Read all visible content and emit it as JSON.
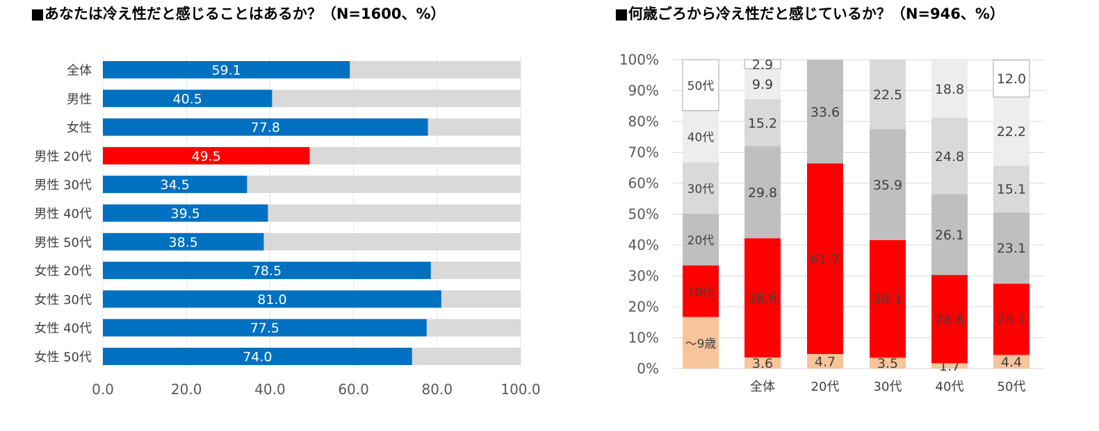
{
  "titles": {
    "left": "■あなたは冷え性だと感じることはあるか？（N=1600、%）",
    "right": "■何歳ごろから冷え性だと感じているか？（N=946、%）"
  },
  "colors": {
    "bar_blue": "#0070c0",
    "bar_red": "#ff0000",
    "track_gray": "#d9d9d9",
    "seg_under9": "#f8c49a",
    "seg_10s": "#ff0000",
    "seg_20s": "#bfbfbf",
    "seg_30s": "#d9d9d9",
    "seg_40s": "#ededed",
    "seg_50s": "#ffffff"
  },
  "chart_data": [
    {
      "type": "bar",
      "orientation": "horizontal",
      "title": "■あなたは冷え性だと感じることはあるか？（N=1600、%）",
      "categories": [
        "全体",
        "男性",
        "女性",
        "男性 20代",
        "男性 30代",
        "男性 40代",
        "男性 50代",
        "女性 20代",
        "女性 30代",
        "女性 40代",
        "女性 50代"
      ],
      "values": [
        59.1,
        40.5,
        77.8,
        49.5,
        34.5,
        39.5,
        38.5,
        78.5,
        81.0,
        77.5,
        74.0
      ],
      "value_labels": [
        "59.1",
        "40.5",
        "77.8",
        "49.5",
        "34.5",
        "39.5",
        "38.5",
        "78.5",
        "81.0",
        "77.5",
        "74.0"
      ],
      "highlight_index": 3,
      "xlim": [
        0,
        100
      ],
      "x_ticks": [
        "0.0",
        "20.0",
        "40.0",
        "60.0",
        "80.0",
        "100.0"
      ],
      "grid": true
    },
    {
      "type": "bar",
      "orientation": "vertical",
      "stacked": true,
      "title": "■何歳ごろから冷え性だと感じているか？（N=946、%）",
      "categories": [
        "全体",
        "20代",
        "30代",
        "40代",
        "50代"
      ],
      "y_ticks": [
        "0%",
        "10%",
        "20%",
        "30%",
        "40%",
        "50%",
        "60%",
        "70%",
        "80%",
        "90%",
        "100%"
      ],
      "ylim": [
        0,
        100
      ],
      "grid": true,
      "legend": "left",
      "series": [
        {
          "name": "～9歳",
          "values": [
            3.6,
            4.7,
            3.5,
            1.7,
            4.4
          ],
          "labels": [
            "3.6",
            "4.7",
            "3.5",
            "1.7",
            "4.4"
          ]
        },
        {
          "name": "10代",
          "values": [
            38.6,
            61.7,
            38.1,
            28.6,
            23.1
          ],
          "labels": [
            "38.6",
            "61.7",
            "38.1",
            "28.6",
            "23.1"
          ]
        },
        {
          "name": "20代",
          "values": [
            29.8,
            33.6,
            35.9,
            26.1,
            23.1
          ],
          "labels": [
            "29.8",
            "33.6",
            "35.9",
            "26.1",
            "23.1"
          ]
        },
        {
          "name": "30代",
          "values": [
            15.2,
            0,
            22.5,
            24.8,
            15.1
          ],
          "labels": [
            "15.2",
            "",
            "22.5",
            "24.8",
            "15.1"
          ]
        },
        {
          "name": "40代",
          "values": [
            9.9,
            0,
            0,
            18.8,
            22.2
          ],
          "labels": [
            "9.9",
            "",
            "",
            "18.8",
            "22.2"
          ]
        },
        {
          "name": "50代",
          "values": [
            2.9,
            0,
            0,
            0,
            12.0
          ],
          "labels": [
            "2.9",
            "",
            "",
            "",
            "12.0"
          ]
        }
      ],
      "legend_values": [
        16.7,
        16.7,
        16.7,
        16.7,
        16.7,
        16.5
      ]
    }
  ]
}
